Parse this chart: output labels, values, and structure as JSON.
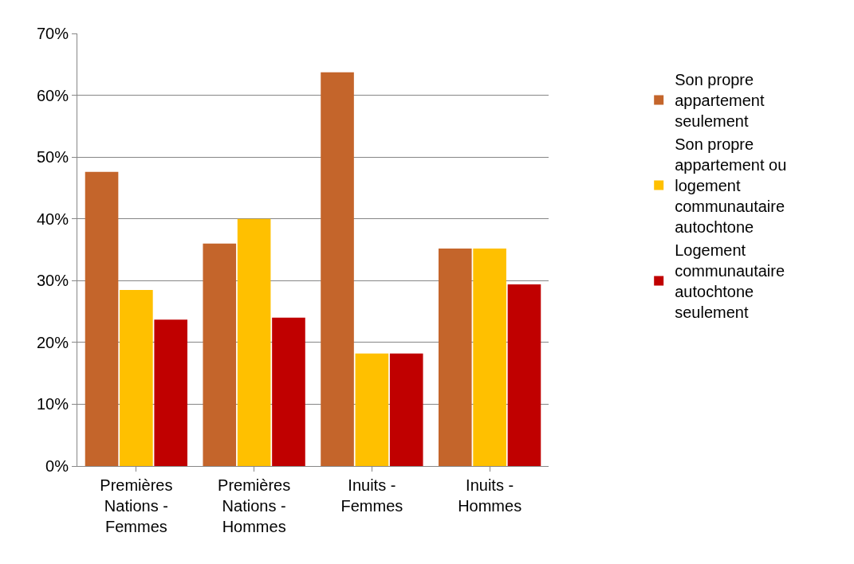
{
  "chart_data": {
    "type": "bar",
    "categories": [
      "Premières Nations - Femmes",
      "Premières Nations - Hommes",
      "Inuits - Femmes",
      "Inuits - Hommes"
    ],
    "series": [
      {
        "name": "Son propre appartement seulement",
        "color": "#c4652b",
        "values": [
          47.6,
          36.0,
          63.7,
          35.2
        ]
      },
      {
        "name": "Son propre appartement ou logement communautaire autochtone",
        "color": "#ffc000",
        "values": [
          28.5,
          40.0,
          18.2,
          35.2
        ]
      },
      {
        "name": "Logement communautaire autochtone seulement",
        "color": "#c00000",
        "values": [
          23.7,
          24.0,
          18.2,
          29.4
        ]
      }
    ],
    "ylim": [
      0,
      70
    ],
    "yticks": [
      {
        "value": 0,
        "label": "0%"
      },
      {
        "value": 10,
        "label": "10%"
      },
      {
        "value": 20,
        "label": "20%"
      },
      {
        "value": 30,
        "label": "30%"
      },
      {
        "value": 40,
        "label": "40%"
      },
      {
        "value": 50,
        "label": "50%"
      },
      {
        "value": 60,
        "label": "60%"
      },
      {
        "value": 70,
        "label": "70%"
      }
    ],
    "grid": "y",
    "legend": "right"
  }
}
